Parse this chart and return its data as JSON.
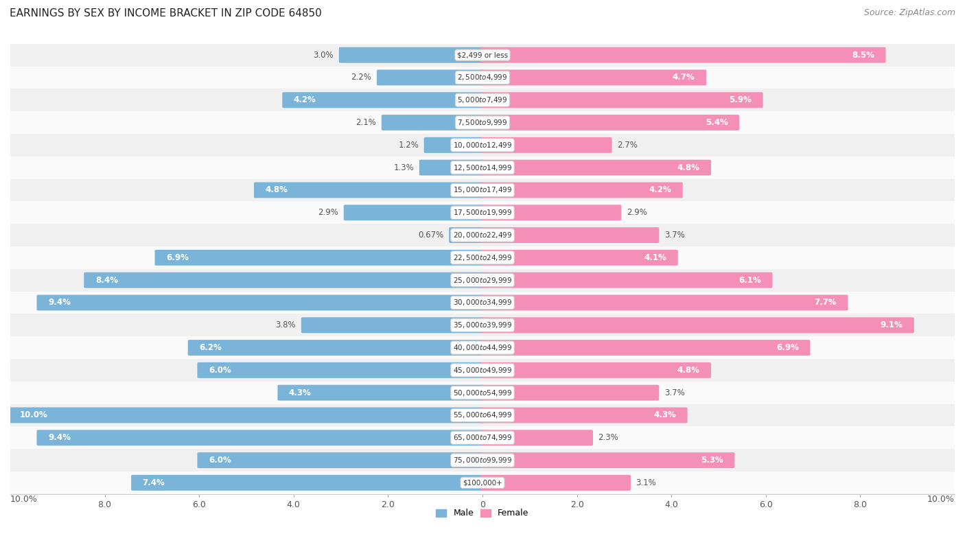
{
  "title": "EARNINGS BY SEX BY INCOME BRACKET IN ZIP CODE 64850",
  "source": "Source: ZipAtlas.com",
  "categories": [
    "$2,499 or less",
    "$2,500 to $4,999",
    "$5,000 to $7,499",
    "$7,500 to $9,999",
    "$10,000 to $12,499",
    "$12,500 to $14,999",
    "$15,000 to $17,499",
    "$17,500 to $19,999",
    "$20,000 to $22,499",
    "$22,500 to $24,999",
    "$25,000 to $29,999",
    "$30,000 to $34,999",
    "$35,000 to $39,999",
    "$40,000 to $44,999",
    "$45,000 to $49,999",
    "$50,000 to $54,999",
    "$55,000 to $64,999",
    "$65,000 to $74,999",
    "$75,000 to $99,999",
    "$100,000+"
  ],
  "male_values": [
    3.0,
    2.2,
    4.2,
    2.1,
    1.2,
    1.3,
    4.8,
    2.9,
    0.67,
    6.9,
    8.4,
    9.4,
    3.8,
    6.2,
    6.0,
    4.3,
    10.0,
    9.4,
    6.0,
    7.4
  ],
  "female_values": [
    8.5,
    4.7,
    5.9,
    5.4,
    2.7,
    4.8,
    4.2,
    2.9,
    3.7,
    4.1,
    6.1,
    7.7,
    9.1,
    6.9,
    4.8,
    3.7,
    4.3,
    2.3,
    5.3,
    3.1
  ],
  "male_color": "#7ab4d8",
  "female_color": "#f490b8",
  "male_label": "Male",
  "female_label": "Female",
  "xlim": 10.0,
  "background_color": "#ffffff",
  "row_color_odd": "#f0f0f0",
  "row_color_even": "#fafafa",
  "title_fontsize": 11,
  "source_fontsize": 9,
  "label_fontsize": 8.5,
  "axis_fontsize": 9,
  "inside_label_threshold": 4.0,
  "category_pill_color": "#ffffff",
  "category_pill_edge": "#cccccc"
}
